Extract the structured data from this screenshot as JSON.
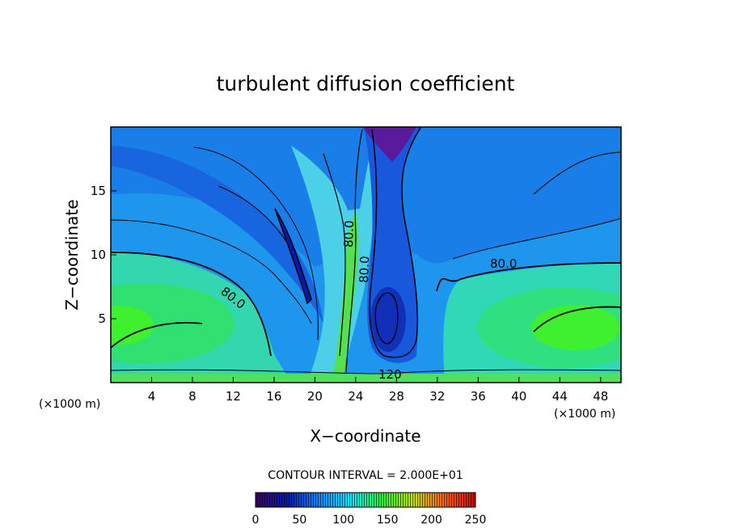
{
  "chart_data": {
    "type": "heatmap",
    "title": "turbulent diffusion coefficient",
    "xlabel": "X−coordinate",
    "ylabel": "Z−coordinate",
    "x_unit_left": "(×1000 m)",
    "x_unit_right": "(×1000 m)",
    "xlim": [
      0,
      50
    ],
    "ylim": [
      0,
      20
    ],
    "x_ticks": [
      "4",
      "8",
      "12",
      "16",
      "20",
      "24",
      "28",
      "32",
      "36",
      "40",
      "44",
      "48"
    ],
    "y_ticks": [
      "5",
      "10",
      "15"
    ],
    "contour_interval_text": "CONTOUR INTERVAL = 2.000E+01",
    "contour_labels": [
      "80.0",
      "80.0",
      "80.0",
      "80.0",
      "120"
    ],
    "colorbar": {
      "min": 0,
      "max": 250,
      "ticks": [
        "0",
        "50",
        "100",
        "150",
        "200",
        "250"
      ],
      "colormap": [
        "#3a0a5e",
        "#0a1aa8",
        "#2080ff",
        "#20e0ff",
        "#30f040",
        "#c0e020",
        "#ff6020",
        "#c01010"
      ]
    },
    "features": [
      {
        "name": "left-low-level-maximum",
        "x": 2,
        "z": 4.5,
        "value": 130
      },
      {
        "name": "right-low-level-maximum",
        "x": 46,
        "z": 4.5,
        "value": 130
      },
      {
        "name": "central-updraft-column",
        "x": 23,
        "z": 5,
        "value": 120
      },
      {
        "name": "top-center-minimum",
        "x": 27,
        "z": 19.5,
        "value": 10
      },
      {
        "name": "lower-center-minimum",
        "x": 27.5,
        "z": 5,
        "value": 30
      }
    ]
  }
}
